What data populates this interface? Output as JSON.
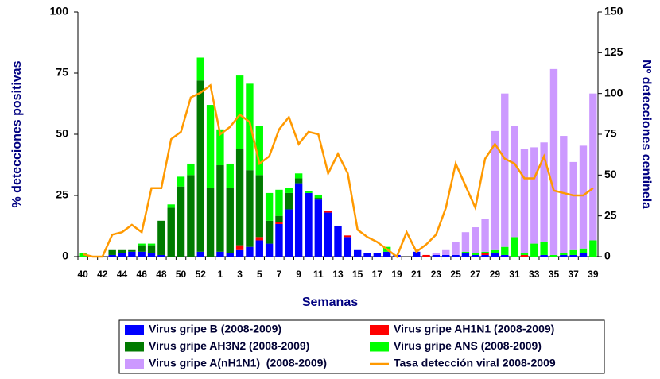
{
  "chart_data": {
    "type": "bar",
    "xlabel": "Semanas",
    "ylabel": "% detecciones positivas",
    "y2label": "Nº detecciones centinela",
    "categories": [
      "40",
      null,
      "42",
      null,
      "44",
      null,
      "46",
      null,
      "48",
      null,
      "50",
      null,
      "52",
      null,
      "1",
      null,
      "3",
      null,
      "5",
      null,
      "7",
      null,
      "9",
      null,
      "11",
      null,
      "13",
      null,
      "15",
      null,
      "17",
      null,
      "19",
      null,
      "21",
      null,
      "23",
      null,
      "25",
      null,
      "27",
      null,
      "29",
      null,
      "31",
      null,
      "33",
      null,
      "35",
      null,
      "37",
      null,
      "39"
    ],
    "ylim": [
      0,
      100
    ],
    "yticks": [
      0,
      25,
      50,
      75,
      100
    ],
    "y2lim": [
      0,
      150
    ],
    "y2ticks": [
      0,
      25,
      50,
      75,
      100,
      125,
      150
    ],
    "grid": false,
    "legend": "bottom",
    "stacked": true,
    "series": [
      {
        "name": "Virus gripe B (2008-2009)",
        "color": "#0000ff",
        "axis": "y2",
        "values": [
          0,
          0,
          0,
          1,
          2,
          3,
          3,
          2,
          1,
          0,
          0,
          0,
          3,
          0,
          3,
          2,
          4,
          6,
          10,
          8,
          20,
          29,
          45,
          39,
          35,
          27,
          19,
          12,
          4,
          2,
          2,
          3,
          1,
          0,
          3,
          0,
          1,
          1,
          1,
          2,
          1,
          1,
          2,
          1,
          0,
          0,
          0,
          1,
          0,
          1,
          1,
          2,
          0
        ]
      },
      {
        "name": "Virus gripe AH1N1 (2008-2009)",
        "color": "#ff0000",
        "axis": "y2",
        "values": [
          0,
          0,
          0,
          0,
          0,
          0,
          0,
          0,
          0,
          0,
          0,
          0,
          0,
          0,
          0,
          0,
          3,
          0,
          2,
          0,
          1,
          0,
          0,
          0,
          0,
          1,
          0,
          1,
          0,
          0,
          0,
          0,
          0,
          0,
          0,
          1,
          0,
          0,
          0,
          0,
          0,
          1,
          0,
          0,
          0,
          1,
          0,
          0,
          0,
          0,
          0,
          0,
          0
        ]
      },
      {
        "name": "Virus gripe AH3N2 (2008-2009)",
        "color": "#007a00",
        "axis": "y2",
        "values": [
          0,
          0,
          0,
          3,
          2,
          1,
          4,
          5,
          21,
          30,
          43,
          50,
          105,
          42,
          53,
          40,
          59,
          47,
          38,
          14,
          4,
          10,
          3,
          0,
          1,
          0,
          0,
          0,
          0,
          0,
          0,
          0,
          0,
          0,
          0,
          0,
          0,
          0,
          0,
          0,
          0,
          0,
          0,
          0,
          0,
          0,
          0,
          0,
          0,
          0,
          0,
          0,
          0
        ]
      },
      {
        "name": "Virus gripe ANS (2008-2009)",
        "color": "#00ff00",
        "axis": "y2",
        "values": [
          2,
          0,
          0,
          0,
          0,
          0,
          1,
          1,
          0,
          2,
          6,
          7,
          14,
          51,
          22,
          15,
          45,
          53,
          30,
          17,
          16,
          3,
          3,
          1,
          2,
          0,
          0,
          0,
          0,
          0,
          0,
          3,
          0,
          0,
          0,
          0,
          0,
          0,
          0,
          1,
          1,
          1,
          2,
          5,
          12,
          1,
          8,
          8,
          1,
          1,
          3,
          3,
          10
        ]
      },
      {
        "name": "Virus gripe A(nH1N1)  (2008-2009)",
        "color": "#cc99ff",
        "axis": "y2",
        "values": [
          0,
          0,
          0,
          0,
          0,
          0,
          0,
          0,
          0,
          0,
          0,
          0,
          0,
          0,
          0,
          0,
          0,
          0,
          0,
          0,
          0,
          0,
          0,
          0,
          0,
          0,
          0,
          0,
          0,
          0,
          0,
          0,
          0,
          0,
          0,
          0,
          1,
          3,
          8,
          12,
          16,
          20,
          73,
          94,
          68,
          64,
          59,
          61,
          114,
          72,
          54,
          63,
          90
        ]
      },
      {
        "name": "Tasa detección viral 2008-2009",
        "color": "#ff9900",
        "type": "line",
        "axis": "y",
        "values": [
          1,
          0,
          0,
          9,
          10,
          13,
          10,
          28,
          28,
          48,
          51,
          65,
          67,
          70,
          50,
          53,
          58,
          55,
          38,
          41,
          52,
          57,
          46,
          51,
          50,
          34,
          42,
          34,
          11,
          8,
          6,
          3,
          0,
          10,
          2,
          5,
          9,
          20,
          38,
          29,
          20,
          40,
          46,
          40,
          38,
          32,
          32,
          41,
          27,
          26,
          25,
          25,
          28
        ]
      }
    ]
  }
}
